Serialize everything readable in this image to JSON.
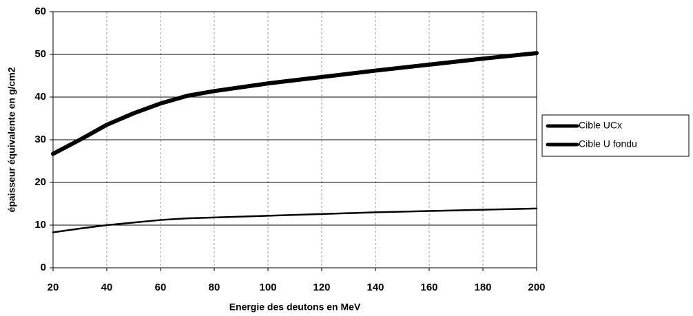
{
  "chart_data": {
    "type": "line",
    "xlabel": "Energie des deutons en MeV",
    "ylabel": "épaisseur équivalente en g/cm2",
    "x": [
      20,
      30,
      40,
      50,
      60,
      70,
      80,
      100,
      120,
      140,
      160,
      180,
      200
    ],
    "series": [
      {
        "name": "Cible UCx",
        "color": "#000000",
        "values": [
          8.3,
          9.2,
          10,
          10.6,
          11.2,
          11.6,
          11.8,
          12.2,
          12.6,
          13,
          13.3,
          13.6,
          13.9
        ]
      },
      {
        "name": "Cible U fondu",
        "color": "#000000",
        "values": [
          26.7,
          30,
          33.5,
          36.2,
          38.5,
          40.3,
          41.4,
          43.2,
          44.7,
          46.2,
          47.6,
          49,
          50.3
        ]
      }
    ],
    "xlim": [
      20,
      200
    ],
    "xticks": [
      20,
      40,
      60,
      80,
      100,
      120,
      140,
      160,
      180,
      200
    ],
    "ylim": [
      0,
      60
    ],
    "yticks": [
      0,
      10,
      20,
      30,
      40,
      50,
      60
    ],
    "grid": true,
    "legend": "right"
  }
}
